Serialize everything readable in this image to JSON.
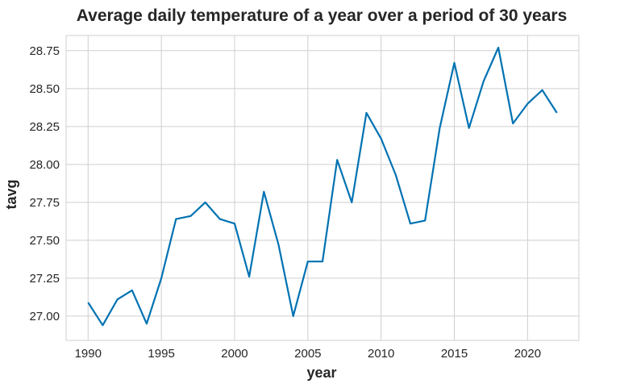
{
  "chart_data": {
    "type": "line",
    "title": "Average daily temperature of a year over a period of 30 years",
    "xlabel": "year",
    "ylabel": "tavg",
    "xlim": [
      1988.5,
      2023.5
    ],
    "ylim": [
      26.84,
      28.85
    ],
    "x_ticks": [
      1990,
      1995,
      2000,
      2005,
      2010,
      2015,
      2020
    ],
    "x_tick_labels": [
      "1990",
      "1995",
      "2000",
      "2005",
      "2010",
      "2015",
      "2020"
    ],
    "y_ticks": [
      27.0,
      27.25,
      27.5,
      27.75,
      28.0,
      28.25,
      28.5,
      28.75
    ],
    "y_tick_labels": [
      "27.00",
      "27.25",
      "27.50",
      "27.75",
      "28.00",
      "28.25",
      "28.50",
      "28.75"
    ],
    "grid": true,
    "series": [
      {
        "color": "#0072b2",
        "x": [
          1990,
          1991,
          1992,
          1993,
          1994,
          1995,
          1996,
          1997,
          1998,
          1999,
          2000,
          2001,
          2002,
          2003,
          2004,
          2005,
          2006,
          2007,
          2008,
          2009,
          2010,
          2011,
          2012,
          2013,
          2014,
          2015,
          2016,
          2017,
          2018,
          2019,
          2020,
          2021,
          2022
        ],
        "y": [
          27.09,
          26.94,
          27.11,
          27.17,
          26.95,
          27.25,
          27.64,
          27.66,
          27.75,
          27.64,
          27.61,
          27.26,
          27.82,
          27.47,
          27.0,
          27.36,
          27.36,
          28.03,
          27.75,
          28.34,
          28.17,
          27.93,
          27.61,
          27.63,
          28.24,
          28.67,
          28.24,
          28.55,
          28.77,
          28.27,
          28.4,
          28.49,
          28.34
        ]
      }
    ]
  }
}
